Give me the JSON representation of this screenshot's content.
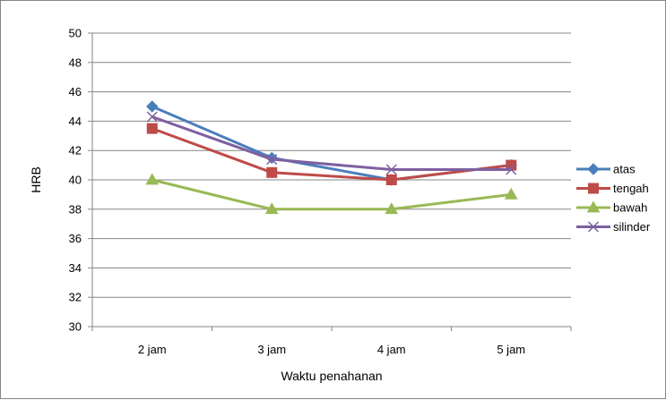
{
  "chart_data": {
    "type": "line",
    "title": "",
    "xlabel": "Waktu penahanan",
    "ylabel": "HRB",
    "categories": [
      "2 jam",
      "3 jam",
      "4 jam",
      "5 jam"
    ],
    "ylim": [
      30,
      50
    ],
    "yticks": [
      30,
      32,
      34,
      36,
      38,
      40,
      42,
      44,
      46,
      48,
      50
    ],
    "grid": "horizontal",
    "legend_position": "right",
    "series": [
      {
        "name": "atas",
        "values": [
          45,
          41.5,
          40,
          41
        ],
        "color": "#4a7ebb",
        "marker": "diamond"
      },
      {
        "name": "tengah",
        "values": [
          43.5,
          40.5,
          40,
          41
        ],
        "color": "#be4b48",
        "marker": "square"
      },
      {
        "name": "bawah",
        "values": [
          40,
          38,
          38,
          39
        ],
        "color": "#98b954",
        "marker": "triangle"
      },
      {
        "name": "silinder",
        "values": [
          44.3,
          41.4,
          40.7,
          40.7
        ],
        "color": "#7d60a0",
        "marker": "x"
      }
    ]
  }
}
